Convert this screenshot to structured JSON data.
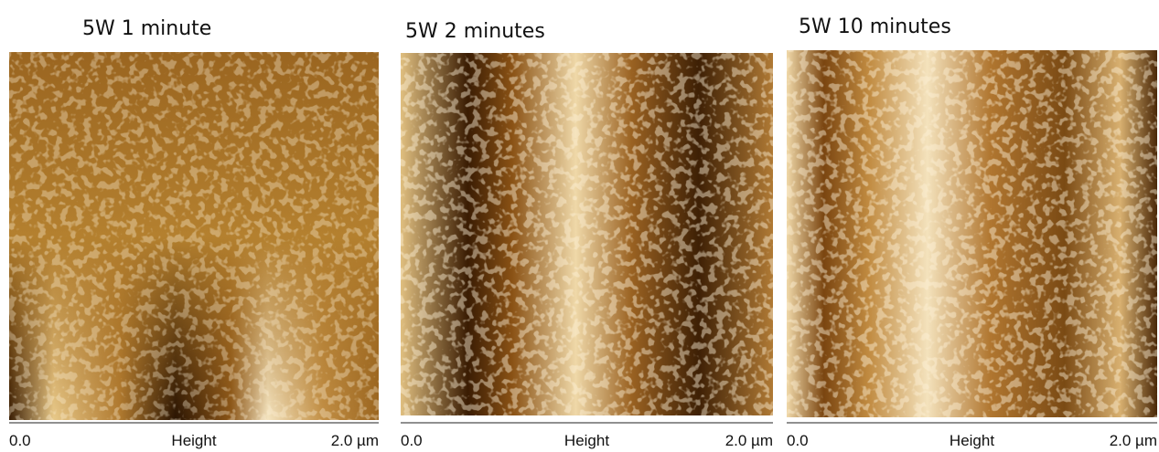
{
  "panels": [
    {
      "title": "5W 1 minute",
      "scale": {
        "min": "0.0",
        "label": "Height",
        "max": "2.0 µm"
      }
    },
    {
      "title": "5W 2 minutes",
      "scale": {
        "min": "0.0",
        "label": "Height",
        "max": "2.0 µm"
      }
    },
    {
      "title": "5W 10 minutes",
      "scale": {
        "min": "0.0",
        "label": "Height",
        "max": "2.0 µm"
      }
    }
  ]
}
